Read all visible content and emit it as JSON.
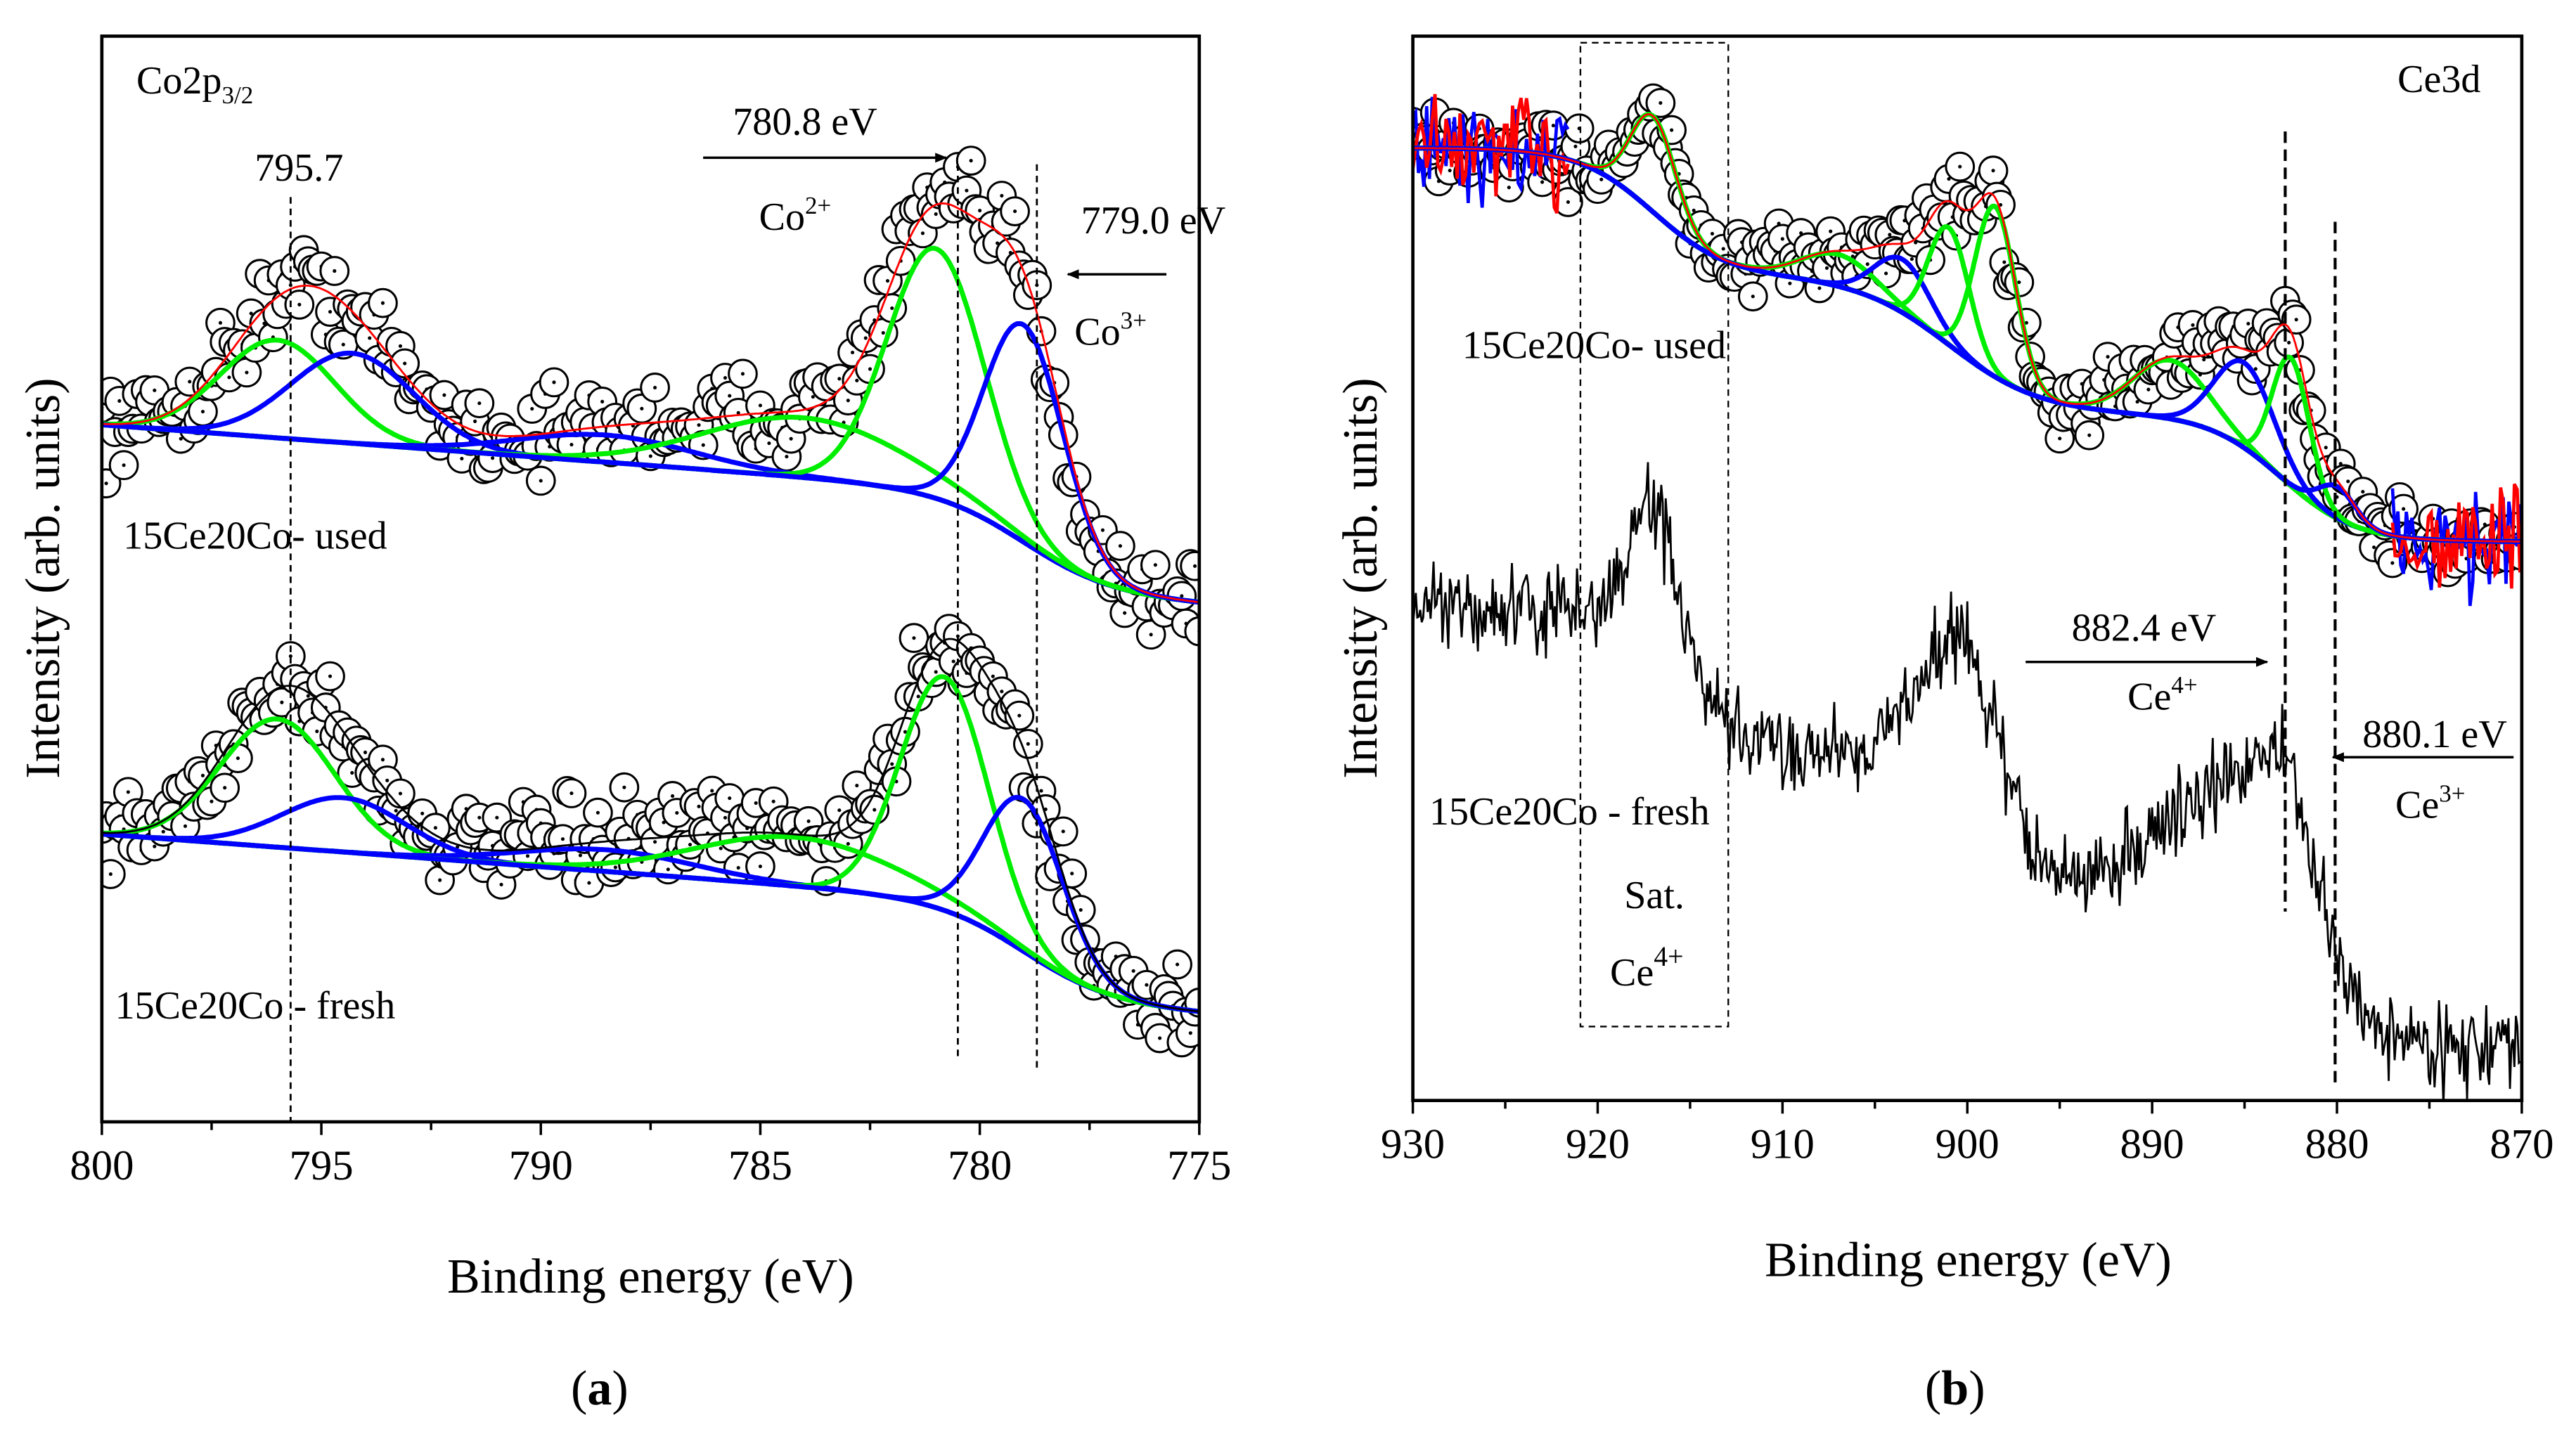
{
  "chart_data": [
    {
      "panel": "a",
      "type": "scatter",
      "caption": {
        "open": "(",
        "letter": "a",
        "close": ")"
      },
      "title": {
        "text": "Co2p",
        "sub": "3/2"
      },
      "xlabel": "Binding energy (eV)",
      "ylabel": "Intensity (arb. units)",
      "xlim": [
        800,
        775
      ],
      "ylim": [
        0,
        100
      ],
      "xticks": [
        800,
        795,
        790,
        785,
        780,
        775
      ],
      "minor_step": 2.5,
      "grid": false,
      "markers": [
        795.7,
        780.5,
        778.7
      ],
      "annotations": {
        "peak_795": "795.7",
        "co2_energy": "780.8 eV",
        "co2_label": {
          "text": "Co",
          "sup": "2+"
        },
        "co3_energy": "779.0 eV",
        "co3_label": {
          "text": "Co",
          "sup": "3+"
        }
      },
      "series": [
        {
          "name": "15Ce20Co- used",
          "fit_color": "#ff0000",
          "points_noise": 3,
          "background": {
            "low": 47.7,
            "slope": 0.3,
            "steps": [
              {
                "center": 779,
                "height": 9,
                "width": 1
              }
            ]
          },
          "components": [
            {
              "color": "#00ee00",
              "center": 796.0,
              "amp": 9,
              "sigma": 1.3
            },
            {
              "color": "#0000ff",
              "center": 794.3,
              "amp": 8.3,
              "sigma": 1.4
            },
            {
              "color": "#0000ff",
              "center": 788.5,
              "amp": 2.5,
              "sigma": 2.0
            },
            {
              "color": "#00ee00",
              "center": 784.0,
              "amp": 5.5,
              "sigma": 2.3
            },
            {
              "color": "#00ee00",
              "center": 781.0,
              "amp": 23,
              "sigma": 1.1
            },
            {
              "color": "#0000ff",
              "center": 779.0,
              "amp": 20,
              "sigma": 0.9
            }
          ]
        },
        {
          "name": "15Ce20Co - fresh",
          "fit_color": "#000000",
          "points_noise": 3,
          "background": {
            "low": 10,
            "slope": 0.3,
            "steps": [
              {
                "center": 779,
                "height": 9,
                "width": 1
              }
            ]
          },
          "components": [
            {
              "color": "#00ee00",
              "center": 796.0,
              "amp": 11.8,
              "sigma": 1.3
            },
            {
              "color": "#0000ff",
              "center": 794.5,
              "amp": 5,
              "sigma": 1.4
            },
            {
              "color": "#0000ff",
              "center": 788.5,
              "amp": 2,
              "sigma": 2.0
            },
            {
              "color": "#00ee00",
              "center": 784.2,
              "amp": 4.5,
              "sigma": 2.3
            },
            {
              "color": "#00ee00",
              "center": 780.8,
              "amp": 21.5,
              "sigma": 1.0
            },
            {
              "color": "#0000ff",
              "center": 779.0,
              "amp": 14,
              "sigma": 0.9
            }
          ]
        }
      ]
    },
    {
      "panel": "b",
      "type": "scatter",
      "caption": {
        "open": "(",
        "letter": "b",
        "close": ")"
      },
      "title": "Ce3d",
      "xlabel": "Binding energy (eV)",
      "ylabel": "Intensity (arb. units)",
      "xlim": [
        930,
        870
      ],
      "ylim": [
        0,
        100
      ],
      "xticks": [
        930,
        920,
        910,
        900,
        890,
        880,
        870
      ],
      "minor_step": 5,
      "grid": false,
      "markers": [
        882.8,
        880.1
      ],
      "satellite_region": {
        "range": [
          921,
          913
        ],
        "label": "Sat.",
        "species": {
          "text": "Ce",
          "sup": "4+"
        }
      },
      "annotations": {
        "ce4_energy": "882.4 eV",
        "ce4_label": {
          "text": "Ce",
          "sup": "4+"
        },
        "ce3_energy": "880.1 eV",
        "ce3_label": {
          "text": "Ce",
          "sup": "3+"
        }
      },
      "series": [
        {
          "name": "15Ce20Co- used",
          "fit_color": "#ff0000",
          "points_noise": 2.5,
          "background": {
            "low": 52.5,
            "slope": 0,
            "steps": [
              {
                "center": 883,
                "height": 12,
                "width": 2
              },
              {
                "center": 901,
                "height": 13,
                "width": 2.5
              },
              {
                "center": 917,
                "height": 12,
                "width": 2
              }
            ]
          },
          "components": [
            {
              "color": "#00ee00",
              "center": 917.0,
              "amp": 9,
              "sigma": 1.2
            },
            {
              "color": "#00ee00",
              "center": 907.0,
              "amp": 3,
              "sigma": 2.0
            },
            {
              "color": "#0000ff",
              "center": 903.5,
              "amp": 5,
              "sigma": 1.5
            },
            {
              "color": "#00ee00",
              "center": 901.0,
              "amp": 11,
              "sigma": 1.1
            },
            {
              "color": "#00ee00",
              "center": 898.5,
              "amp": 16,
              "sigma": 1.1
            },
            {
              "color": "#00ee00",
              "center": 889.0,
              "amp": 5.5,
              "sigma": 2.0
            },
            {
              "color": "#0000ff",
              "center": 885.0,
              "amp": 8,
              "sigma": 1.6
            },
            {
              "color": "#00ee00",
              "center": 882.5,
              "amp": 12,
              "sigma": 1.0
            },
            {
              "color": "#0000ff",
              "center": 880.0,
              "amp": 3,
              "sigma": 1.0
            }
          ]
        },
        {
          "name": "15Ce20Co - fresh",
          "type": "line",
          "line_color": "#000000",
          "line_noise": 3,
          "background": {
            "low": 5,
            "slope": 0,
            "steps": [
              {
                "center": 881,
                "height": 14,
                "width": 1.2
              },
              {
                "center": 898,
                "height": 14,
                "width": 1.2
              },
              {
                "center": 915,
                "height": 13,
                "width": 1.2
              }
            ]
          },
          "components": [
            {
              "center": 917.0,
              "amp": 12,
              "sigma": 1.2
            },
            {
              "center": 900.5,
              "amp": 12,
              "sigma": 2.0
            },
            {
              "center": 886.0,
              "amp": 10,
              "sigma": 4.0
            },
            {
              "center": 883.0,
              "amp": 8,
              "sigma": 1.5
            }
          ]
        }
      ]
    }
  ]
}
